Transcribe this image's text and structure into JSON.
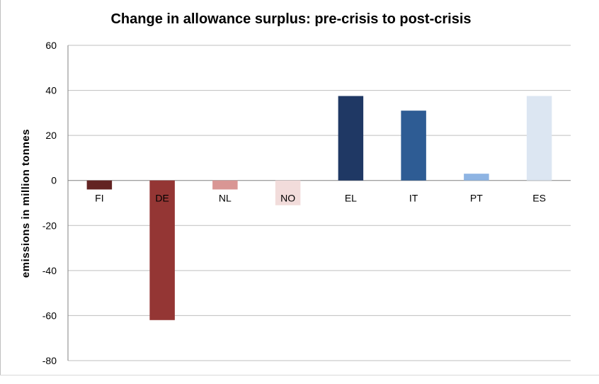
{
  "chart_data": {
    "type": "bar",
    "title": "Change in allowance surplus: pre-crisis to post-crisis",
    "xlabel": "",
    "ylabel": "emissions in million tonnes",
    "ylim": [
      -80,
      60
    ],
    "yticks": [
      60,
      40,
      20,
      0,
      -20,
      -40,
      -60,
      -80
    ],
    "grid": true,
    "legend": "none",
    "categories": [
      "FI",
      "DE",
      "NL",
      "NO",
      "EL",
      "IT",
      "PT",
      "ES"
    ],
    "values": [
      -4,
      -62,
      -4,
      -11,
      37.5,
      31,
      3,
      37.5
    ],
    "colors": [
      "#632423",
      "#943634",
      "#d99694",
      "#f2dcdb",
      "#1f3864",
      "#2e5c94",
      "#8eb4e3",
      "#dce6f2"
    ]
  }
}
